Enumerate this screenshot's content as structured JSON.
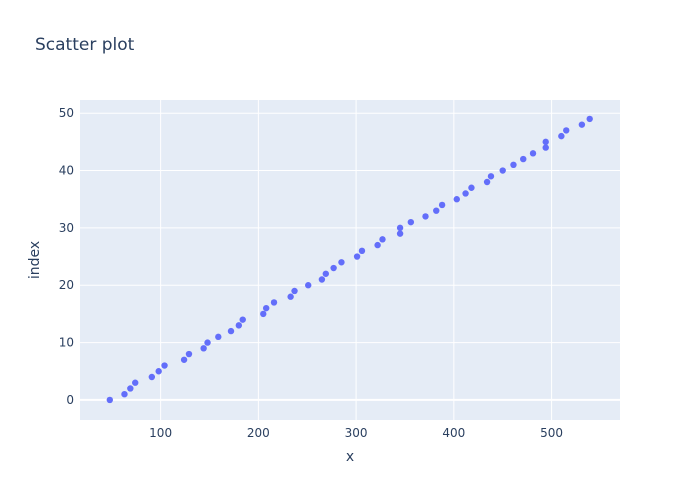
{
  "chart_data": {
    "type": "scatter",
    "title": "Scatter plot",
    "xlabel": "x",
    "ylabel": "index",
    "xlim": [
      17.5,
      570
    ],
    "ylim": [
      -3.5,
      52.3
    ],
    "xticks": [
      100,
      200,
      300,
      400,
      500
    ],
    "yticks": [
      0,
      10,
      20,
      30,
      40,
      50
    ],
    "grid": true,
    "legend": "none",
    "colors": {
      "marker": "#636efa",
      "plot_bg": "#e5ecf6",
      "text": "#2a3f5f"
    },
    "series": [
      {
        "x": [
          48,
          63,
          69,
          74,
          91,
          98,
          104,
          124,
          129,
          144,
          148,
          159,
          172,
          180,
          184,
          205,
          208,
          216,
          233,
          237,
          251,
          265,
          269,
          277,
          285,
          301,
          306,
          322,
          327,
          345,
          345,
          356,
          371,
          382,
          388,
          403,
          412,
          418,
          434,
          438,
          450,
          461,
          471,
          481,
          494,
          494,
          510,
          515,
          531,
          539
        ],
        "y": [
          0,
          1,
          2,
          3,
          4,
          5,
          6,
          7,
          8,
          9,
          10,
          11,
          12,
          13,
          14,
          15,
          16,
          17,
          18,
          19,
          20,
          21,
          22,
          23,
          24,
          25,
          26,
          27,
          28,
          29,
          30,
          31,
          32,
          33,
          34,
          35,
          36,
          37,
          38,
          39,
          40,
          41,
          42,
          43,
          44,
          45,
          46,
          47,
          48,
          49
        ]
      }
    ]
  }
}
